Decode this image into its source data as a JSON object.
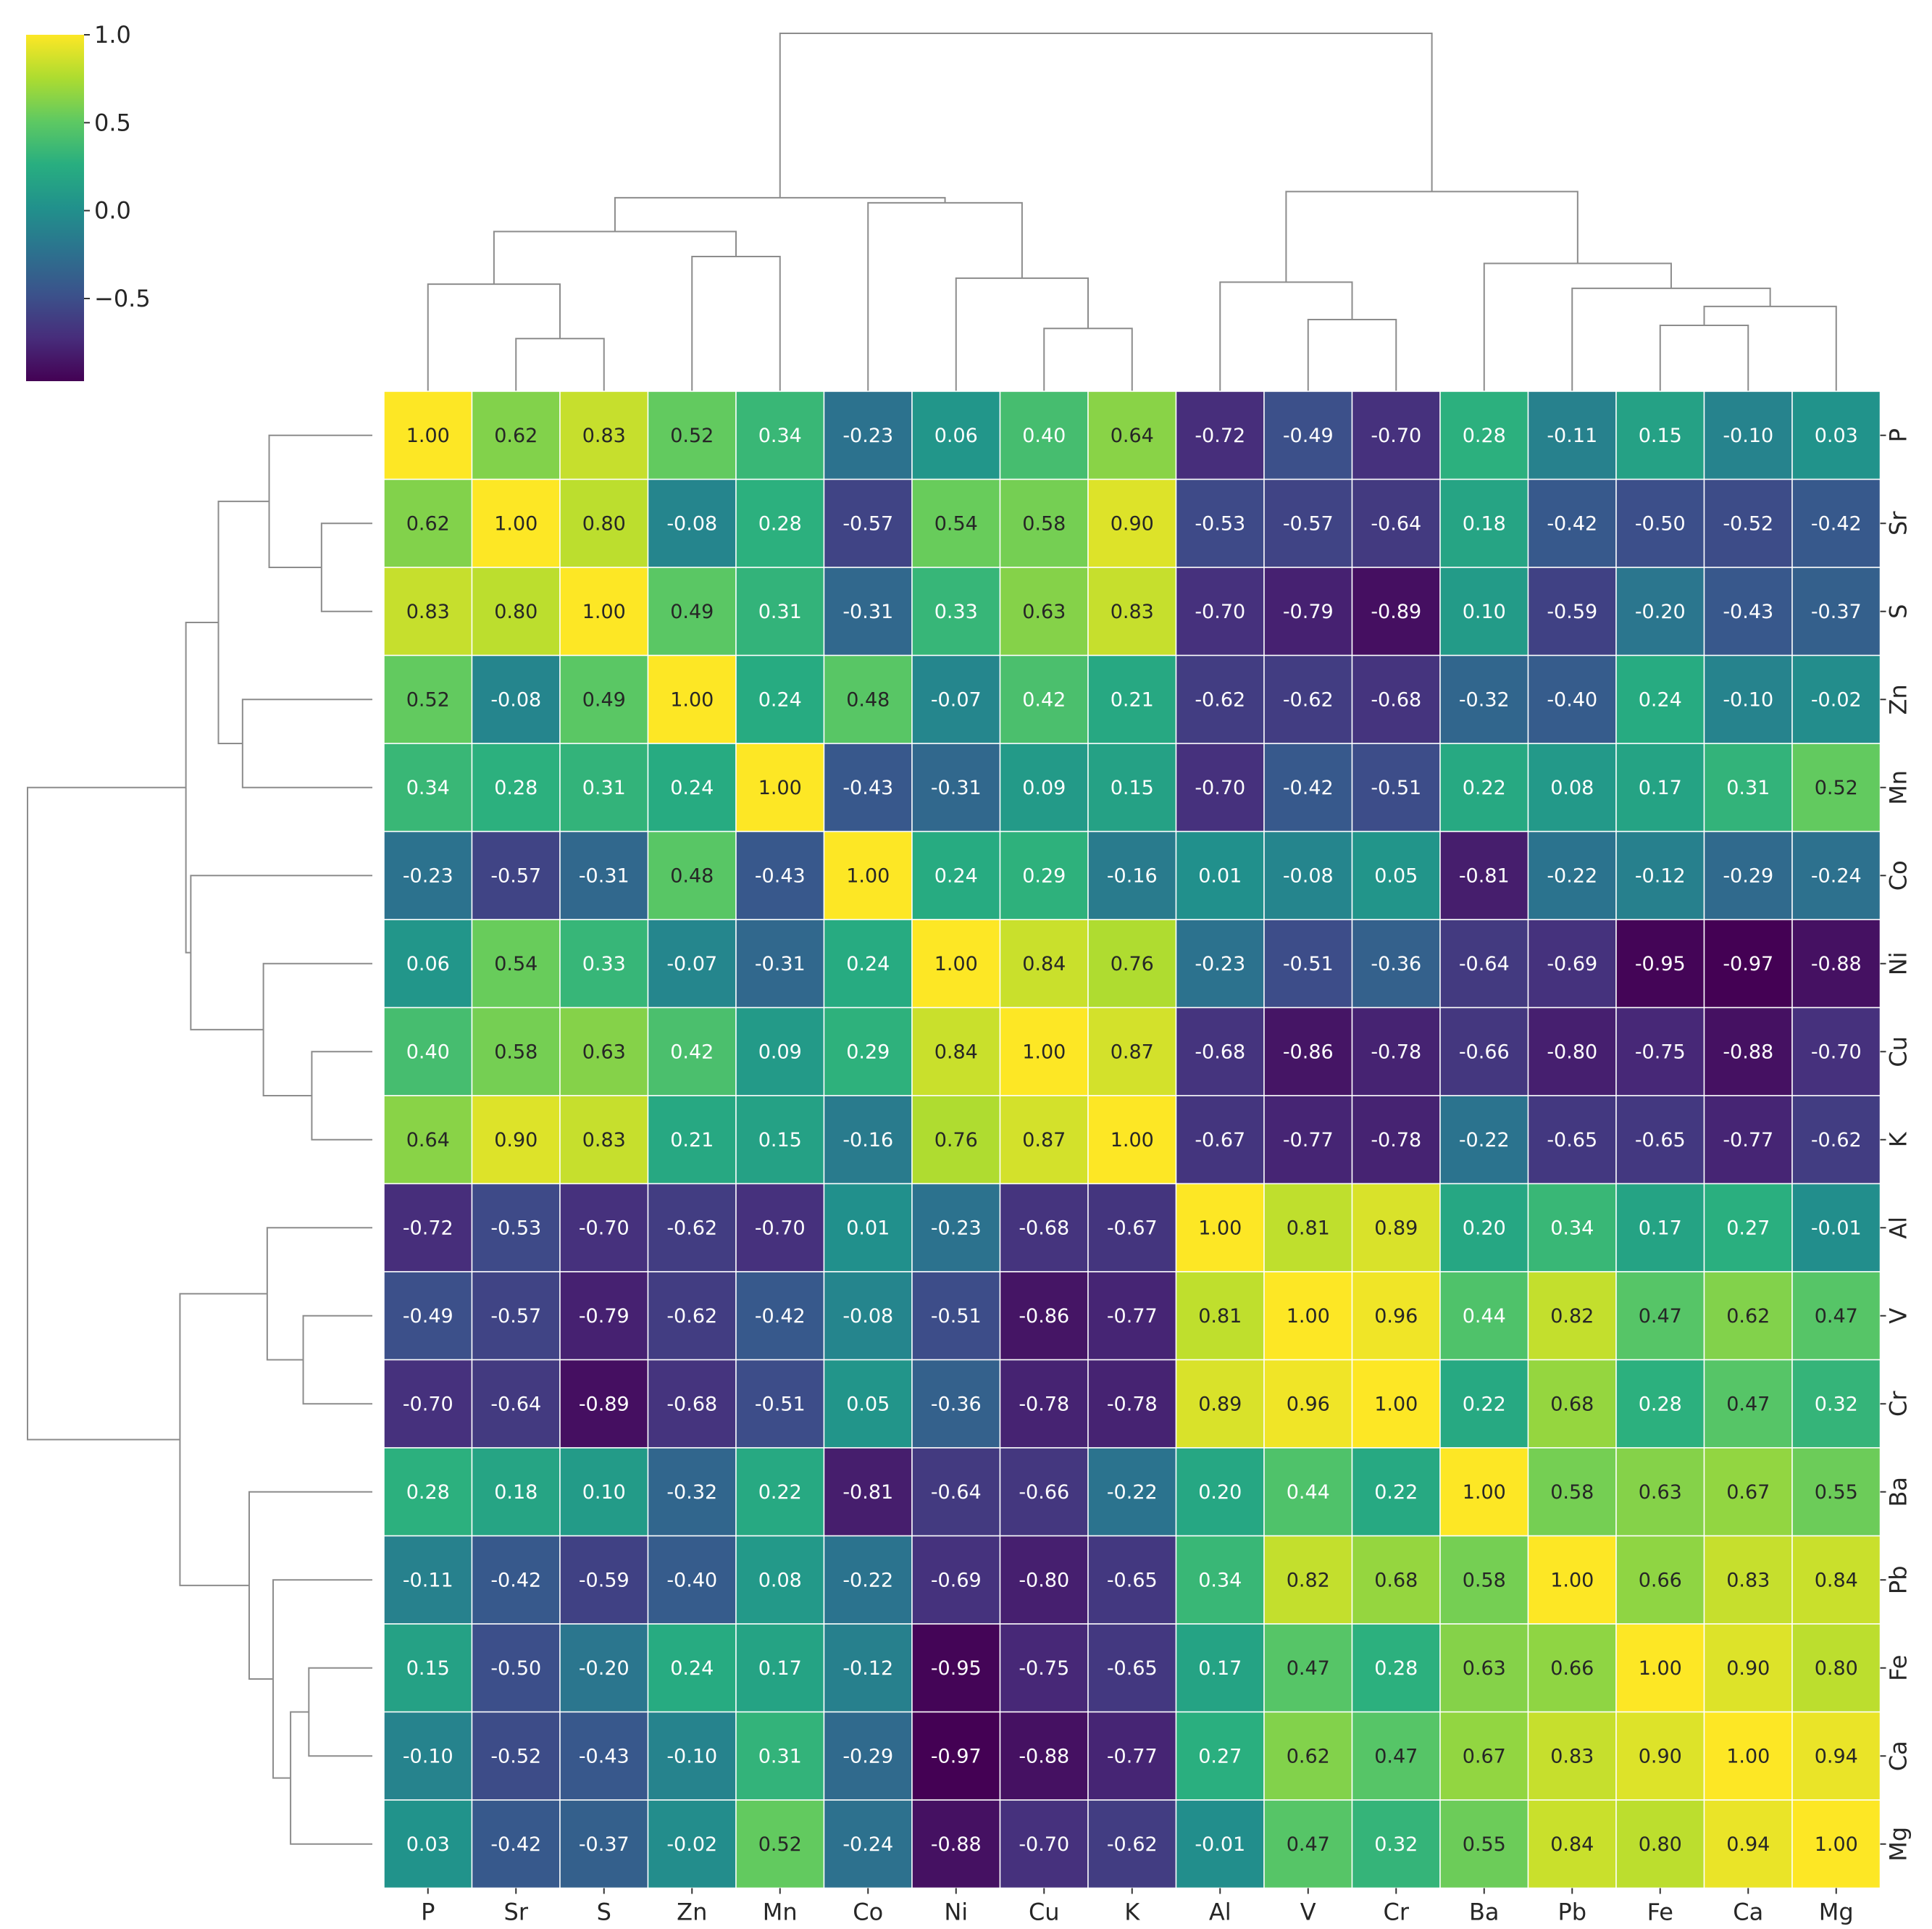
{
  "chart_data": {
    "type": "heatmap",
    "title": "",
    "xlabel": "",
    "ylabel": "",
    "labels": [
      "P",
      "Sr",
      "S",
      "Zn",
      "Mn",
      "Co",
      "Ni",
      "Cu",
      "K",
      "Al",
      "V",
      "Cr",
      "Ba",
      "Pb",
      "Fe",
      "Ca",
      "Mg"
    ],
    "matrix": [
      [
        1.0,
        0.62,
        0.83,
        0.52,
        0.34,
        -0.23,
        0.06,
        0.4,
        0.64,
        -0.72,
        -0.49,
        -0.7,
        0.28,
        -0.11,
        0.15,
        -0.1,
        0.03
      ],
      [
        0.62,
        1.0,
        0.8,
        -0.08,
        0.28,
        -0.57,
        0.54,
        0.58,
        0.9,
        -0.53,
        -0.57,
        -0.64,
        0.18,
        -0.42,
        -0.5,
        -0.52,
        -0.42
      ],
      [
        0.83,
        0.8,
        1.0,
        0.49,
        0.31,
        -0.31,
        0.33,
        0.63,
        0.83,
        -0.7,
        -0.79,
        -0.89,
        0.1,
        -0.59,
        -0.2,
        -0.43,
        -0.37
      ],
      [
        0.52,
        -0.08,
        0.49,
        1.0,
        0.24,
        0.48,
        -0.07,
        0.42,
        0.21,
        -0.62,
        -0.62,
        -0.68,
        -0.32,
        -0.4,
        0.24,
        -0.1,
        -0.02
      ],
      [
        0.34,
        0.28,
        0.31,
        0.24,
        1.0,
        -0.43,
        -0.31,
        0.09,
        0.15,
        -0.7,
        -0.42,
        -0.51,
        0.22,
        0.08,
        0.17,
        0.31,
        0.52
      ],
      [
        -0.23,
        -0.57,
        -0.31,
        0.48,
        -0.43,
        1.0,
        0.24,
        0.29,
        -0.16,
        0.01,
        -0.08,
        0.05,
        -0.81,
        -0.22,
        -0.12,
        -0.29,
        -0.24
      ],
      [
        0.06,
        0.54,
        0.33,
        -0.07,
        -0.31,
        0.24,
        1.0,
        0.84,
        0.76,
        -0.23,
        -0.51,
        -0.36,
        -0.64,
        -0.69,
        -0.95,
        -0.97,
        -0.88
      ],
      [
        0.4,
        0.58,
        0.63,
        0.42,
        0.09,
        0.29,
        0.84,
        1.0,
        0.87,
        -0.68,
        -0.86,
        -0.78,
        -0.66,
        -0.8,
        -0.75,
        -0.88,
        -0.7
      ],
      [
        0.64,
        0.9,
        0.83,
        0.21,
        0.15,
        -0.16,
        0.76,
        0.87,
        1.0,
        -0.67,
        -0.77,
        -0.78,
        -0.22,
        -0.65,
        -0.65,
        -0.77,
        -0.62
      ],
      [
        -0.72,
        -0.53,
        -0.7,
        -0.62,
        -0.7,
        0.01,
        -0.23,
        -0.68,
        -0.67,
        1.0,
        0.81,
        0.89,
        0.2,
        0.34,
        0.17,
        0.27,
        -0.01
      ],
      [
        -0.49,
        -0.57,
        -0.79,
        -0.62,
        -0.42,
        -0.08,
        -0.51,
        -0.86,
        -0.77,
        0.81,
        1.0,
        0.96,
        0.44,
        0.82,
        0.47,
        0.62,
        0.47
      ],
      [
        -0.7,
        -0.64,
        -0.89,
        -0.68,
        -0.51,
        0.05,
        -0.36,
        -0.78,
        -0.78,
        0.89,
        0.96,
        1.0,
        0.22,
        0.68,
        0.28,
        0.47,
        0.32
      ],
      [
        0.28,
        0.18,
        0.1,
        -0.32,
        0.22,
        -0.81,
        -0.64,
        -0.66,
        -0.22,
        0.2,
        0.44,
        0.22,
        1.0,
        0.58,
        0.63,
        0.67,
        0.55
      ],
      [
        -0.11,
        -0.42,
        -0.59,
        -0.4,
        0.08,
        -0.22,
        -0.69,
        -0.8,
        -0.65,
        0.34,
        0.82,
        0.68,
        0.58,
        1.0,
        0.66,
        0.83,
        0.84
      ],
      [
        0.15,
        -0.5,
        -0.2,
        0.24,
        0.17,
        -0.12,
        -0.95,
        -0.75,
        -0.65,
        0.17,
        0.47,
        0.28,
        0.63,
        0.66,
        1.0,
        0.9,
        0.8
      ],
      [
        -0.1,
        -0.52,
        -0.43,
        -0.1,
        0.31,
        -0.29,
        -0.97,
        -0.88,
        -0.77,
        0.27,
        0.62,
        0.47,
        0.67,
        0.83,
        0.9,
        1.0,
        0.94
      ],
      [
        0.03,
        -0.42,
        -0.37,
        -0.02,
        0.52,
        -0.24,
        -0.88,
        -0.7,
        -0.62,
        -0.01,
        0.47,
        0.32,
        0.55,
        0.84,
        0.8,
        0.94,
        1.0
      ]
    ],
    "color_range": [
      -0.97,
      1.0
    ],
    "colormap": "viridis",
    "colorbar_ticks": [
      {
        "value": 1.0,
        "label": "1.0"
      },
      {
        "value": 0.5,
        "label": "0.5"
      },
      {
        "value": 0.0,
        "label": "0.0"
      },
      {
        "value": -0.5,
        "label": "−0.5"
      }
    ],
    "dendrogram": {
      "leaves": [
        "P",
        "Sr",
        "S",
        "Zn",
        "Mn",
        "Co",
        "Ni",
        "Cu",
        "K",
        "Al",
        "V",
        "Cr",
        "Ba",
        "Pb",
        "Fe",
        "Ca",
        "Mg"
      ],
      "merges": [
        {
          "a": "Sr",
          "b": "S",
          "height": 0.08
        },
        {
          "a": "Fe",
          "b": "Ca",
          "height": 0.12
        },
        {
          "a": "Cu",
          "b": "K",
          "height": 0.11
        },
        {
          "a": "V",
          "b": "Cr",
          "height": 0.14
        },
        {
          "a": "fe-ca",
          "b": "Mg",
          "height": 0.19
        },
        {
          "a": "Pb",
          "b": "fe-ca-mg",
          "height": 0.27
        },
        {
          "a": "P",
          "b": "sr-s",
          "height": 0.29
        },
        {
          "a": "Al",
          "b": "v-cr",
          "height": 0.3
        },
        {
          "a": "Ni",
          "b": "cu-k",
          "height": 0.32
        },
        {
          "a": "Ba",
          "b": "pb-fe-ca-mg",
          "height": 0.4
        },
        {
          "a": "Zn",
          "b": "Mn",
          "height": 0.44
        },
        {
          "a": "p-sr-s",
          "b": "zn-mn",
          "height": 0.6
        },
        {
          "a": "Co",
          "b": "ni-cu-k",
          "height": 0.81
        },
        {
          "a": "al-v-cr",
          "b": "ba-pb-fe-ca-mg",
          "height": 0.9
        },
        {
          "a": "p-sr-s-zn-mn",
          "b": "co-ni-cu-k",
          "height": 0.85
        },
        {
          "a": "group-1",
          "b": "group-2",
          "height": 2.6
        }
      ]
    },
    "colors": {
      "grid_line": "#ffffff",
      "dendrogram_line": "#8c8c8c",
      "text_light": "#ffffff",
      "text_dark": "#262626"
    }
  }
}
